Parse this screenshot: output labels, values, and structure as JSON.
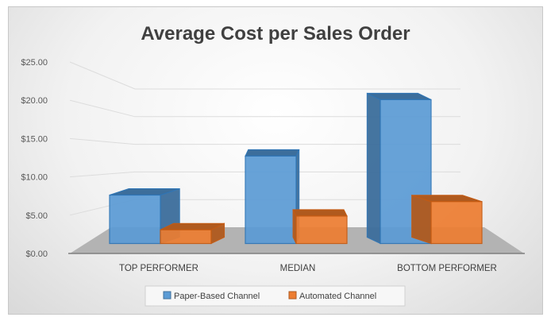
{
  "chart_data": {
    "type": "bar",
    "style": "3d-clustered-column",
    "title": "Average Cost per Sales Order",
    "xlabel": "",
    "ylabel": "",
    "ylim": [
      0,
      25
    ],
    "yticks": [
      "$0.00",
      "$5.00",
      "$10.00",
      "$15.00",
      "$20.00",
      "$25.00"
    ],
    "categories": [
      "TOP PERFORMER",
      "MEDIAN",
      "BOTTOM PERFORMER"
    ],
    "series": [
      {
        "name": "Paper-Based Channel",
        "color": "#5b9bd5",
        "values": [
          6.7,
          12.1,
          19.9
        ]
      },
      {
        "name": "Automated Channel",
        "color": "#ed7d31",
        "values": [
          1.9,
          3.8,
          5.8
        ]
      }
    ],
    "grid": true,
    "legend": "bottom"
  }
}
